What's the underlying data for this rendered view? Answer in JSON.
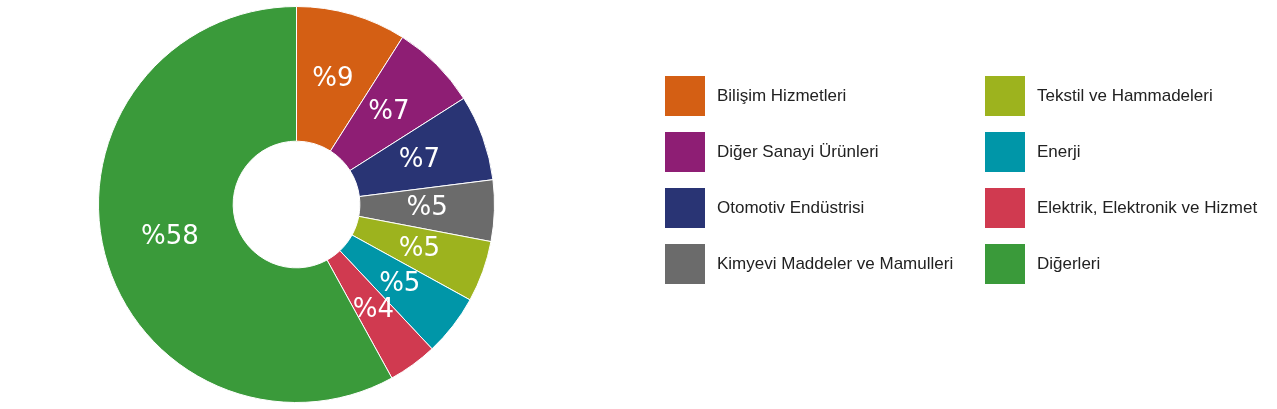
{
  "chart_data": {
    "type": "donut",
    "categories": [
      "Bilişim Hizmetleri",
      "Diğer Sanayi Ürünleri",
      "Otomotiv Endüstrisi",
      "Kimyevi Maddeler ve Mamulleri",
      "Tekstil ve Hammadeleri",
      "Enerji",
      "Elektrik, Elektronik ve Hizmet",
      "Diğerleri"
    ],
    "values": [
      9,
      7,
      7,
      5,
      5,
      5,
      4,
      58
    ],
    "colors": [
      "#d45f14",
      "#8e1e74",
      "#293474",
      "#6b6b6b",
      "#9db31e",
      "#0096a8",
      "#d03a50",
      "#3a9a3a"
    ],
    "value_labels": [
      "%9",
      "%7",
      "%7",
      "%5",
      "%5",
      "%5",
      "%4",
      "%58"
    ],
    "legend": "right"
  }
}
